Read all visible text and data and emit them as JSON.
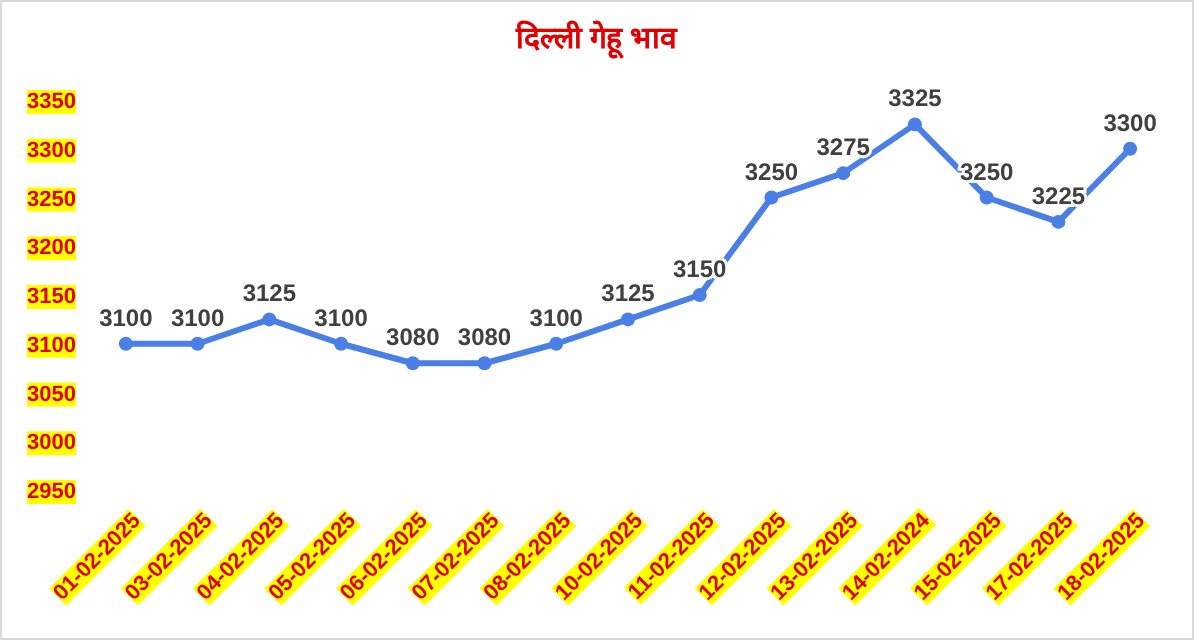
{
  "chart_data": {
    "type": "line",
    "title": "दिल्ली गेहू भाव",
    "categories": [
      "01-02-2025",
      "03-02-2025",
      "04-02-2025",
      "05-02-2025",
      "06-02-2025",
      "07-02-2025",
      "08-02-2025",
      "10-02-2025",
      "11-02-2025",
      "12-02-2025",
      "13-02-2025",
      "14-02-2024",
      "15-02-2025",
      "17-02-2025",
      "18-02-2025"
    ],
    "series": [
      {
        "color": "#4a7fe6",
        "values": [
          3100,
          3100,
          3125,
          3100,
          3080,
          3080,
          3100,
          3125,
          3150,
          3250,
          3275,
          3325,
          3250,
          3225,
          3300
        ]
      }
    ],
    "ylim": [
      2950,
      3350
    ],
    "yticks": [
      2950,
      3000,
      3050,
      3100,
      3150,
      3200,
      3250,
      3300,
      3350
    ],
    "grid": false,
    "marker": "circle",
    "line_style": "solid",
    "data_labels": true
  }
}
